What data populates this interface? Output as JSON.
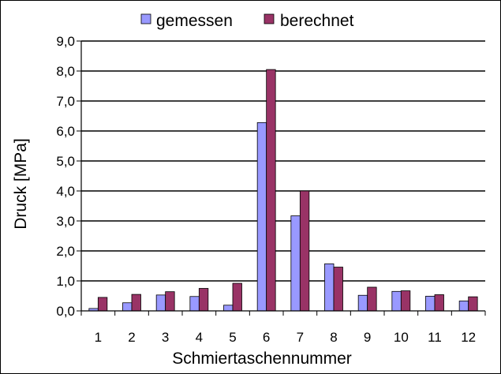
{
  "chart_data": {
    "type": "bar",
    "categories": [
      "1",
      "2",
      "3",
      "4",
      "5",
      "6",
      "7",
      "8",
      "9",
      "10",
      "11",
      "12"
    ],
    "series": [
      {
        "name": "gemessen",
        "color": "#9999FF",
        "values": [
          0.08,
          0.27,
          0.53,
          0.48,
          0.19,
          6.28,
          3.17,
          1.57,
          0.52,
          0.65,
          0.49,
          0.33
        ]
      },
      {
        "name": "berechnet",
        "color": "#993366",
        "values": [
          0.45,
          0.55,
          0.64,
          0.75,
          0.92,
          8.05,
          4.0,
          1.46,
          0.79,
          0.67,
          0.54,
          0.47
        ]
      }
    ],
    "xlabel": "Schmiertaschennummer",
    "ylabel": "Druck [MPa]",
    "ylim": [
      0,
      9
    ],
    "yticks": [
      "0,0",
      "1,0",
      "2,0",
      "3,0",
      "4,0",
      "5,0",
      "6,0",
      "7,0",
      "8,0",
      "9,0"
    ],
    "grid": true,
    "legend_position": "top"
  }
}
